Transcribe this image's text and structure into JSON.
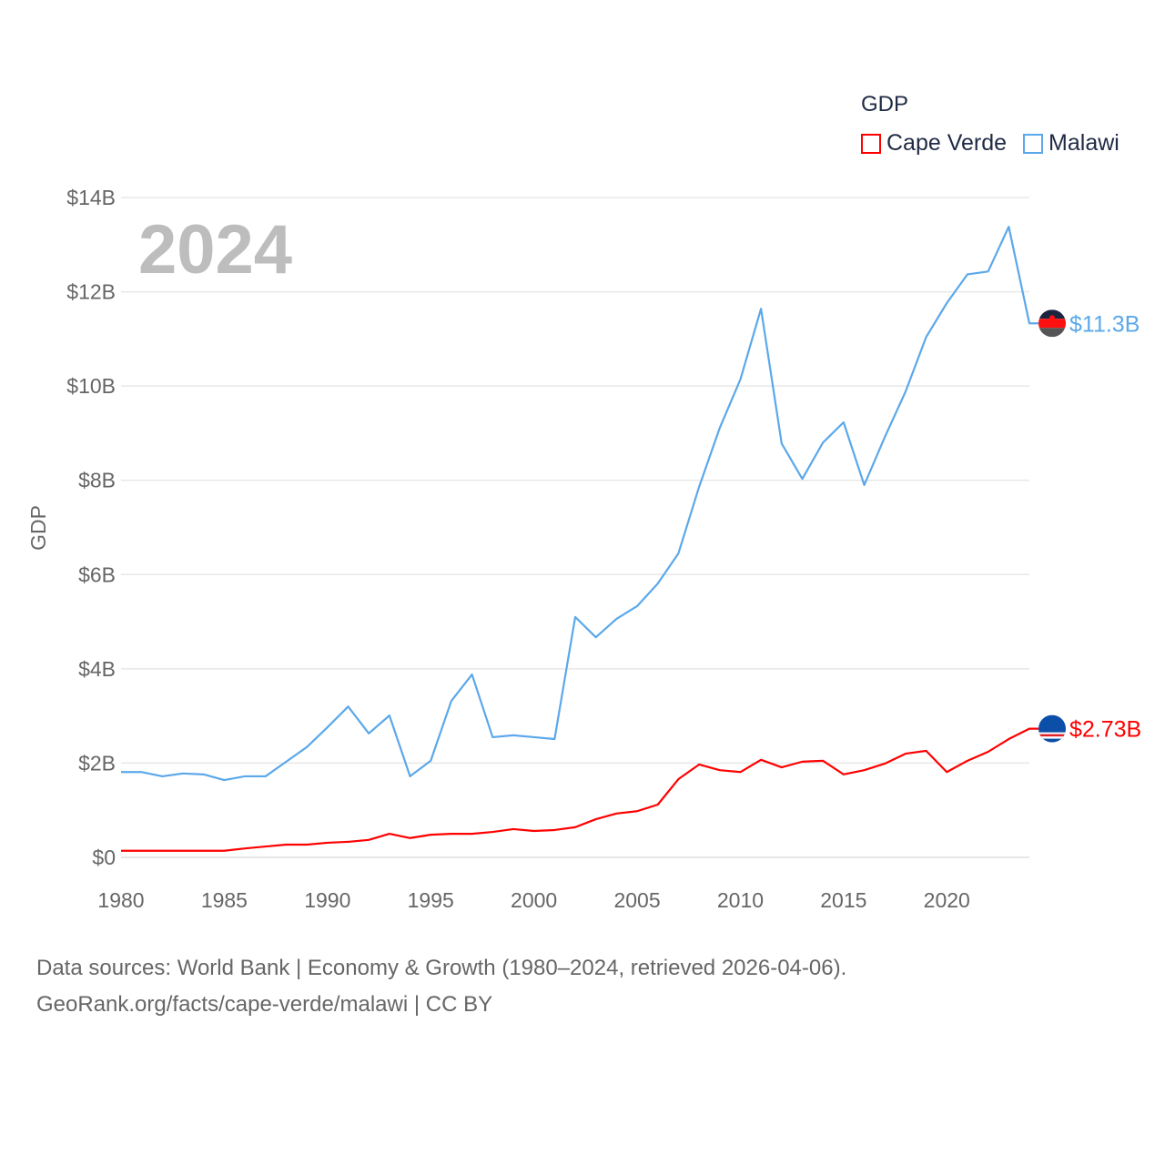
{
  "chart_data": {
    "type": "line",
    "title": "",
    "watermark_year": "2024",
    "xlabel": "",
    "ylabel": "GDP",
    "xlim": [
      1980,
      2024
    ],
    "ylim": [
      0,
      14
    ],
    "x_ticks": [
      "1980",
      "1985",
      "1990",
      "1995",
      "2000",
      "2005",
      "2010",
      "2015",
      "2020"
    ],
    "y_ticks": [
      "$0",
      "$2B",
      "$4B",
      "$6B",
      "$8B",
      "$10B",
      "$12B",
      "$14B"
    ],
    "grid": true,
    "legend": {
      "title": "GDP",
      "placement": "top-right",
      "entries": [
        "Cape Verde",
        "Malawi"
      ]
    },
    "x": [
      1980,
      1981,
      1982,
      1983,
      1984,
      1985,
      1986,
      1987,
      1988,
      1989,
      1990,
      1991,
      1992,
      1993,
      1994,
      1995,
      1996,
      1997,
      1998,
      1999,
      2000,
      2001,
      2002,
      2003,
      2004,
      2005,
      2006,
      2007,
      2008,
      2009,
      2010,
      2011,
      2012,
      2013,
      2014,
      2015,
      2016,
      2017,
      2018,
      2019,
      2020,
      2021,
      2022,
      2023,
      2024
    ],
    "series": [
      {
        "name": "Cape Verde",
        "color": "#ff0000",
        "end_label": "$2.73B",
        "flag": "cape-verde-flag",
        "values": [
          0.14,
          0.14,
          0.14,
          0.14,
          0.14,
          0.14,
          0.19,
          0.23,
          0.27,
          0.27,
          0.31,
          0.33,
          0.37,
          0.5,
          0.41,
          0.48,
          0.5,
          0.5,
          0.54,
          0.6,
          0.56,
          0.58,
          0.64,
          0.81,
          0.93,
          0.98,
          1.12,
          1.66,
          1.97,
          1.85,
          1.81,
          2.07,
          1.91,
          2.03,
          2.05,
          1.76,
          1.85,
          1.99,
          2.2,
          2.26,
          1.81,
          2.05,
          2.24,
          2.51,
          2.73
        ]
      },
      {
        "name": "Malawi",
        "color": "#5ba8ea",
        "end_label": "$11.3B",
        "flag": "malawi-flag",
        "values": [
          1.81,
          1.81,
          1.72,
          1.78,
          1.76,
          1.64,
          1.72,
          1.72,
          2.03,
          2.34,
          2.76,
          3.2,
          2.63,
          3.01,
          1.72,
          2.05,
          3.32,
          3.88,
          2.55,
          2.59,
          2.55,
          2.51,
          5.1,
          4.67,
          5.06,
          5.33,
          5.81,
          6.45,
          7.86,
          9.11,
          10.14,
          11.64,
          8.78,
          8.03,
          8.8,
          9.23,
          7.9,
          8.92,
          9.88,
          11.04,
          11.76,
          12.37,
          12.43,
          13.38,
          11.33
        ]
      }
    ]
  },
  "footer": {
    "line1": "Data sources: World Bank | Economy & Growth (1980–2024, retrieved 2026-04-06).",
    "line2": "GeoRank.org/facts/cape-verde/malawi | CC BY"
  }
}
